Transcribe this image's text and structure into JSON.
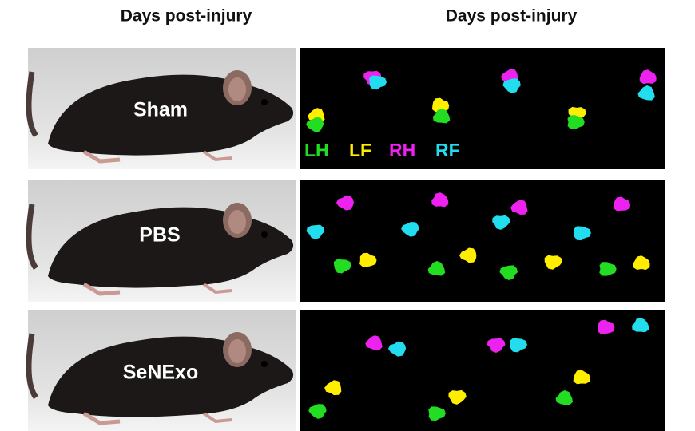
{
  "headers": [
    "Days post-injury",
    "Days post-injury"
  ],
  "rows": [
    {
      "label": "Sham"
    },
    {
      "label": "PBS"
    },
    {
      "label": "SeNExo"
    }
  ],
  "legend": [
    {
      "label": "LH",
      "color": "#22dd22"
    },
    {
      "label": "LF",
      "color": "#ffee00"
    },
    {
      "label": "RH",
      "color": "#ee22ee"
    },
    {
      "label": "RF",
      "color": "#22ddee"
    }
  ]
}
